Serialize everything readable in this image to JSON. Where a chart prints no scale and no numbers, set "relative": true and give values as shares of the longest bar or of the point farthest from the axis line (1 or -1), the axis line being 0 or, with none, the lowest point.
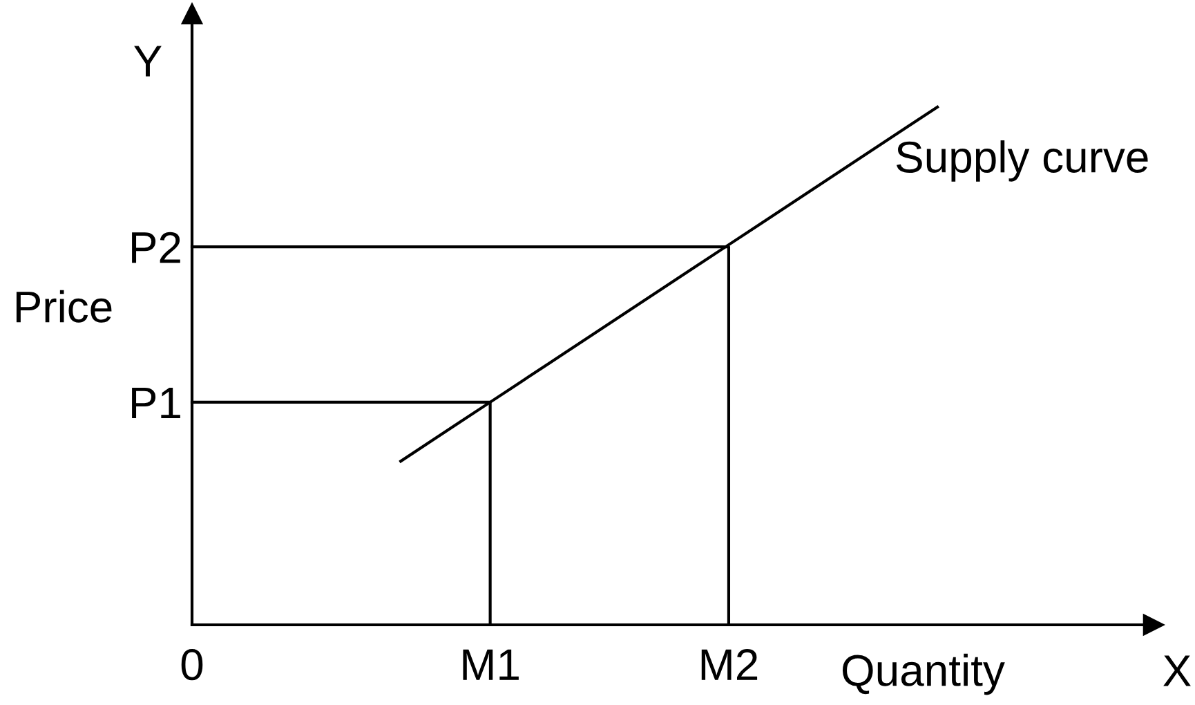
{
  "chart_data": {
    "type": "line",
    "relative": true,
    "xlabel": "Quantity",
    "ylabel": "Price",
    "line_style": "solid",
    "categories": [
      "0",
      null,
      null,
      null,
      null,
      null,
      null,
      null,
      null,
      null,
      "M1",
      null,
      null,
      null,
      null,
      null,
      null,
      null,
      "M2",
      null,
      null,
      null,
      null,
      null,
      null,
      null
    ],
    "series": [
      {
        "name": "Supply curve",
        "color": "#000000",
        "values": [
          null,
          null,
          null,
          null,
          null,
          null,
          null,
          0.316,
          0.354,
          0.392,
          0.43,
          0.468,
          0.506,
          0.544,
          0.582,
          0.62,
          0.658,
          0.696,
          0.734,
          0.772,
          0.81,
          0.848,
          0.886,
          0.924,
          0.962,
          1.0
        ]
      },
      {
        "color": "#000000",
        "x": [
          "0",
          "M1",
          "M1"
        ],
        "values": [
          0.43,
          0.43,
          0
        ]
      },
      {
        "color": "#000000",
        "x": [
          "0",
          "M2",
          "M2"
        ],
        "values": [
          0.73,
          0.73,
          0
        ]
      }
    ],
    "annotations": [
      {
        "text": "P1",
        "x": "0",
        "y": 0.43
      },
      {
        "text": "P2",
        "x": "0",
        "y": 0.73
      },
      "Y",
      "X"
    ]
  }
}
